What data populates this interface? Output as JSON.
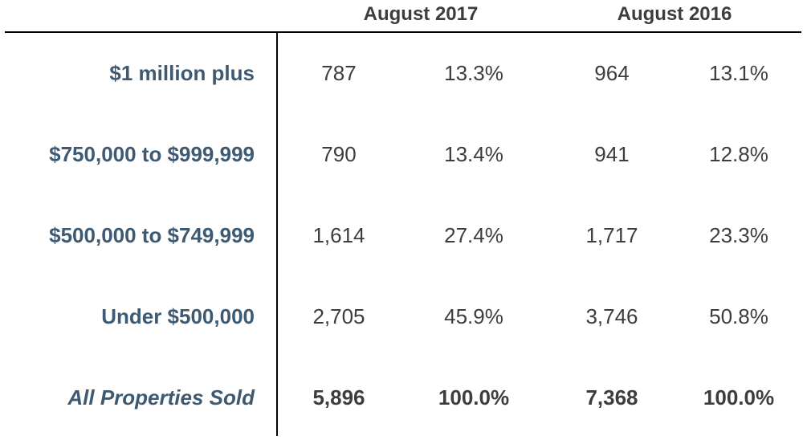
{
  "headers": {
    "col_group_1": "August 2017",
    "col_group_2": "August 2016"
  },
  "rows": [
    {
      "label": "$1 million plus",
      "v2017": "787",
      "p2017": "13.3%",
      "v2016": "964",
      "p2016": "13.1%"
    },
    {
      "label": "$750,000 to $999,999",
      "v2017": "790",
      "p2017": "13.4%",
      "v2016": "941",
      "p2016": "12.8%"
    },
    {
      "label": "$500,000 to $749,999",
      "v2017": "1,614",
      "p2017": "27.4%",
      "v2016": "1,717",
      "p2016": "23.3%"
    },
    {
      "label": "Under $500,000",
      "v2017": "2,705",
      "p2017": "45.9%",
      "v2016": "3,746",
      "p2016": "50.8%"
    },
    {
      "label": "All Properties Sold",
      "v2017": "5,896",
      "p2017": "100.0%",
      "v2016": "7,368",
      "p2016": "100.0%"
    }
  ],
  "colors": {
    "label": "#3e5a72",
    "text": "#3d3d3d"
  }
}
